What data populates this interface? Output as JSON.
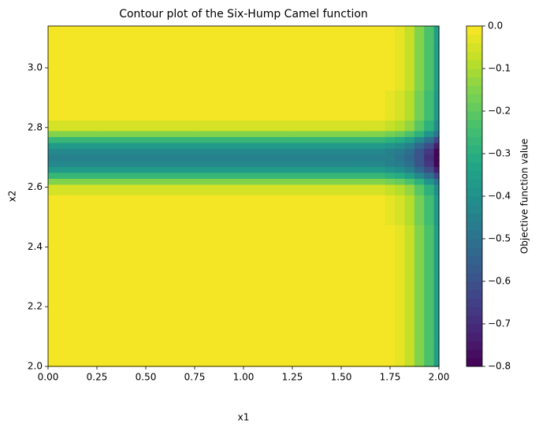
{
  "chart_data": {
    "type": "contour",
    "title": "Contour plot of the Six-Hump Camel function",
    "x_label": "x1",
    "y_label": "x2",
    "colorbar_label": "Objective function value",
    "x": [
      0,
      0.5,
      1.0,
      1.5,
      1.7,
      1.75,
      1.8,
      1.85,
      1.9,
      1.95,
      2.0
    ],
    "y": [
      2.0,
      2.2,
      2.4,
      2.55,
      2.6,
      2.62,
      2.64,
      2.66,
      2.68,
      2.7,
      2.72,
      2.74,
      2.76,
      2.78,
      2.8,
      2.85,
      3.0,
      3.14
    ],
    "z": [
      [
        0,
        0,
        0,
        0,
        0,
        -0.01,
        -0.04,
        -0.08,
        -0.15,
        -0.24,
        -0.35
      ],
      [
        0,
        0,
        0,
        0,
        0,
        -0.01,
        -0.04,
        -0.08,
        -0.15,
        -0.24,
        -0.35
      ],
      [
        0,
        0,
        0,
        0,
        0,
        -0.01,
        -0.04,
        -0.08,
        -0.15,
        -0.24,
        -0.35
      ],
      [
        -0.02,
        -0.02,
        -0.02,
        -0.02,
        -0.02,
        -0.03,
        -0.06,
        -0.1,
        -0.17,
        -0.26,
        -0.37
      ],
      [
        -0.06,
        -0.06,
        -0.06,
        -0.06,
        -0.06,
        -0.07,
        -0.1,
        -0.14,
        -0.21,
        -0.3,
        -0.41
      ],
      [
        -0.15,
        -0.15,
        -0.15,
        -0.15,
        -0.15,
        -0.16,
        -0.19,
        -0.23,
        -0.3,
        -0.39,
        -0.5
      ],
      [
        -0.28,
        -0.28,
        -0.28,
        -0.28,
        -0.28,
        -0.29,
        -0.32,
        -0.36,
        -0.43,
        -0.52,
        -0.63
      ],
      [
        -0.38,
        -0.38,
        -0.38,
        -0.38,
        -0.38,
        -0.39,
        -0.42,
        -0.46,
        -0.53,
        -0.62,
        -0.73
      ],
      [
        -0.44,
        -0.44,
        -0.44,
        -0.44,
        -0.44,
        -0.45,
        -0.48,
        -0.52,
        -0.59,
        -0.68,
        -0.79
      ],
      [
        -0.45,
        -0.45,
        -0.45,
        -0.45,
        -0.45,
        -0.46,
        -0.49,
        -0.53,
        -0.6,
        -0.69,
        -0.8
      ],
      [
        -0.44,
        -0.44,
        -0.44,
        -0.44,
        -0.44,
        -0.45,
        -0.48,
        -0.52,
        -0.59,
        -0.68,
        -0.79
      ],
      [
        -0.38,
        -0.38,
        -0.38,
        -0.38,
        -0.38,
        -0.39,
        -0.42,
        -0.46,
        -0.53,
        -0.62,
        -0.73
      ],
      [
        -0.28,
        -0.28,
        -0.28,
        -0.28,
        -0.28,
        -0.29,
        -0.32,
        -0.36,
        -0.43,
        -0.52,
        -0.63
      ],
      [
        -0.15,
        -0.15,
        -0.15,
        -0.15,
        -0.15,
        -0.16,
        -0.19,
        -0.23,
        -0.3,
        -0.39,
        -0.5
      ],
      [
        -0.06,
        -0.06,
        -0.06,
        -0.06,
        -0.06,
        -0.07,
        -0.1,
        -0.14,
        -0.21,
        -0.3,
        -0.41
      ],
      [
        -0.02,
        -0.02,
        -0.02,
        -0.02,
        -0.02,
        -0.03,
        -0.06,
        -0.1,
        -0.17,
        -0.26,
        -0.37
      ],
      [
        0,
        0,
        0,
        0,
        0,
        -0.01,
        -0.04,
        -0.08,
        -0.15,
        -0.24,
        -0.35
      ],
      [
        0,
        0,
        0,
        0,
        0,
        -0.01,
        -0.04,
        -0.08,
        -0.15,
        -0.24,
        -0.35
      ]
    ],
    "colormap": "viridis",
    "levels": 40,
    "xlim": [
      0,
      2.0
    ],
    "ylim": [
      2.0,
      3.14
    ],
    "zlim": [
      -0.8,
      0
    ],
    "xticks": [
      {
        "value": 0,
        "label": "0.00"
      },
      {
        "value": 0.25,
        "label": "0.25"
      },
      {
        "value": 0.5,
        "label": "0.50"
      },
      {
        "value": 0.75,
        "label": "0.75"
      },
      {
        "value": 1.0,
        "label": "1.00"
      },
      {
        "value": 1.25,
        "label": "1.25"
      },
      {
        "value": 1.5,
        "label": "1.50"
      },
      {
        "value": 1.75,
        "label": "1.75"
      },
      {
        "value": 2.0,
        "label": "2.00"
      }
    ],
    "yticks": [
      {
        "value": 2.0,
        "label": "2.0"
      },
      {
        "value": 2.2,
        "label": "2.2"
      },
      {
        "value": 2.4,
        "label": "2.4"
      },
      {
        "value": 2.6,
        "label": "2.6"
      },
      {
        "value": 2.8,
        "label": "2.8"
      },
      {
        "value": 3.0,
        "label": "3.0"
      }
    ],
    "zticks": [
      {
        "value": 0,
        "label": "0.0"
      },
      {
        "value": -0.1,
        "label": "−0.1"
      },
      {
        "value": -0.2,
        "label": "−0.2"
      },
      {
        "value": -0.3,
        "label": "−0.3"
      },
      {
        "value": -0.4,
        "label": "−0.4"
      },
      {
        "value": -0.5,
        "label": "−0.5"
      },
      {
        "value": -0.6,
        "label": "−0.6"
      },
      {
        "value": -0.7,
        "label": "−0.7"
      },
      {
        "value": -0.8,
        "label": "−0.8"
      }
    ]
  }
}
